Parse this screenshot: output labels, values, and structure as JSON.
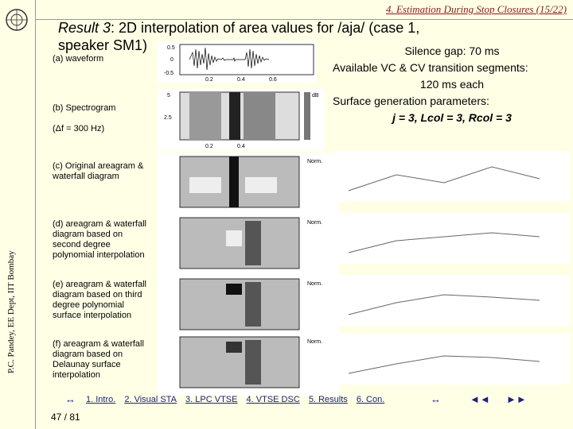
{
  "header": {
    "section": "4. Estimation During Stop Closures (15/22)",
    "author": "P.C. Pandey, EE Dept, IIT Bombay"
  },
  "title": {
    "lead": "Result 3",
    "text": ": 2D interpolation of area values for /aja/ (case 1, speaker SM1)"
  },
  "labels": {
    "a": "(a) waveform",
    "b": "(b) Spectrogram",
    "b2": "(Δf = 300 Hz)",
    "c": "(c) Original areagram & waterfall diagram",
    "d": "(d) areagram & waterfall diagram based on second degree polynomial interpolation",
    "e": "(e) areagram & waterfall diagram based on third degree polynomial surface interpolation",
    "f": "(f) areagram & waterfall diagram based on Delaunay surface interpolation"
  },
  "info": {
    "line1": "Silence gap: 70 ms",
    "line2": "Available VC & CV transition segments:",
    "line3": "120 ms each",
    "line4": "Surface generation parameters:",
    "line5": "j = 3, Lcol = 3, Rcol = 3"
  },
  "nav": {
    "items": [
      "1. Intro.",
      "2. Visual STA",
      "3. LPC VTSE",
      "4. VTSE DSC",
      "5. Results",
      "6. Con."
    ],
    "page": "47 / 81",
    "back": "◄◄",
    "fwd": "►►",
    "jump": "↔"
  },
  "colors": {
    "accent": "#8b1a1a",
    "nav": "#1a237e"
  }
}
